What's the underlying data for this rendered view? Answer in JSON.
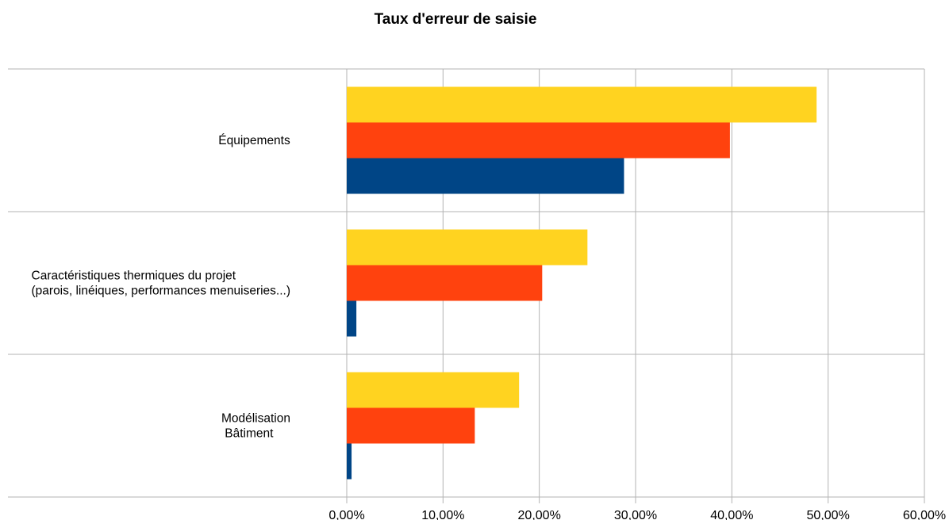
{
  "chart_data": {
    "type": "bar",
    "orientation": "horizontal",
    "title": "Taux d'erreur de saisie",
    "xlabel": "",
    "ylabel": "",
    "xlim": [
      0,
      60
    ],
    "x_tick_labels": [
      "0,00%",
      "10,00%",
      "20,00%",
      "30,00%",
      "40,00%",
      "50,00%",
      "60,00%"
    ],
    "grid": true,
    "legend": "none",
    "categories": [
      {
        "lines": [
          "Équipements"
        ]
      },
      {
        "lines": [
          "Caractéristiques thermiques du projet",
          "(parois, linéiques, performances menuiseries...)"
        ]
      },
      {
        "lines": [
          "Modélisation",
          " Bâtiment"
        ]
      }
    ],
    "series": [
      {
        "color": "#ffd320",
        "values": [
          48.8,
          25.0,
          17.9
        ]
      },
      {
        "color": "#ff420e",
        "values": [
          39.8,
          20.3,
          13.3
        ]
      },
      {
        "color": "#004586",
        "values": [
          28.8,
          1.0,
          0.5
        ]
      }
    ]
  }
}
